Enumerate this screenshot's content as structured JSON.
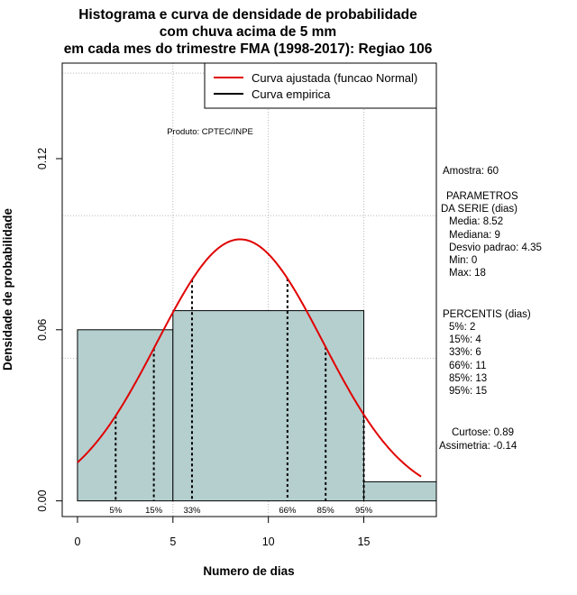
{
  "chart_data": {
    "type": "histogram",
    "title_lines": [
      "Histograma e curva de densidade de probabilidade",
      "com chuva acima de 5 mm",
      "em cada mes do trimestre FMA (1998-2017): Regiao 106"
    ],
    "xlabel": "Numero de dias",
    "ylabel": "Densidade de probabilidade",
    "xlim": [
      -0.8,
      18.8
    ],
    "ylim": [
      -0.0055,
      0.1535
    ],
    "x_ticks": [
      0,
      5,
      10,
      15
    ],
    "y_ticks": [
      0.0,
      0.06,
      0.12
    ],
    "y_tick_labels": [
      "0.00",
      "0.06",
      "0.12"
    ],
    "grid_x": [
      5,
      10,
      15
    ],
    "grid_y": [
      0.05,
      0.1,
      0.15
    ],
    "bars": [
      {
        "x0": 0,
        "x1": 5,
        "density": 0.06
      },
      {
        "x0": 5,
        "x1": 15,
        "density": 0.0667
      },
      {
        "x0": 15,
        "x1": 18.8,
        "density": 0.0067
      }
    ],
    "bar_color": "#b5cfcf",
    "normal_curve": {
      "mean": 8.52,
      "sd": 4.35,
      "x_from": 0,
      "x_to": 18,
      "color": "#e00000"
    },
    "percentiles": [
      {
        "label": "5%",
        "x": 2
      },
      {
        "label": "15%",
        "x": 4
      },
      {
        "label": "33%",
        "x": 6
      },
      {
        "label": "66%",
        "x": 11
      },
      {
        "label": "85%",
        "x": 13
      },
      {
        "label": "95%",
        "x": 15
      }
    ],
    "legend": [
      {
        "label": "Curva ajustada (funcao Normal)",
        "color": "#e00000"
      },
      {
        "label": "Curva empirica",
        "color": "#000000"
      }
    ],
    "producer": "Produto: CPTEC/INPE"
  },
  "stats_panel": {
    "amostra": "Amostra: 60",
    "param_title_1": "PARAMETROS",
    "param_title_2": "DA SERIE (dias)",
    "media": "Media: 8.52",
    "mediana": "Mediana: 9",
    "desvio": "Desvio padrao: 4.35",
    "min": "Min: 0",
    "max": "Max: 18",
    "percentis_title": "PERCENTIS (dias)",
    "p5": "5%: 2",
    "p15": "15%: 4",
    "p33": "33%: 6",
    "p66": "66%: 11",
    "p85": "85%: 13",
    "p95": "95%: 15",
    "curtose": "Curtose: 0.89",
    "assimetria": "Assimetria: -0.14"
  }
}
